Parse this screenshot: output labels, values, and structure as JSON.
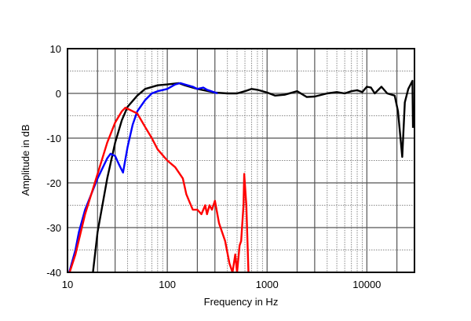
{
  "chart_data": {
    "type": "line",
    "title": "",
    "xlabel": "Frequency in Hz",
    "ylabel": "Amplitude in dB",
    "xscale": "log",
    "xlim": [
      10,
      30000
    ],
    "ylim": [
      -40,
      10
    ],
    "xticks": [
      10,
      100,
      1000,
      10000
    ],
    "xtick_labels": [
      "10",
      "100",
      "1000",
      "10000"
    ],
    "yticks": [
      10,
      0,
      -10,
      -20,
      -30,
      -40
    ],
    "ytick_labels": [
      "10",
      "0",
      "-10",
      "-20",
      "-30",
      "-40"
    ],
    "grid": true,
    "legend": "none",
    "series": [
      {
        "name": "black",
        "color": "#000000",
        "points": [
          [
            18,
            -40
          ],
          [
            20,
            -31
          ],
          [
            25,
            -19
          ],
          [
            30,
            -11
          ],
          [
            35,
            -6
          ],
          [
            40,
            -3
          ],
          [
            50,
            -0.5
          ],
          [
            60,
            1
          ],
          [
            80,
            1.8
          ],
          [
            100,
            2
          ],
          [
            130,
            2.3
          ],
          [
            150,
            1.8
          ],
          [
            200,
            1
          ],
          [
            300,
            0.2
          ],
          [
            400,
            0
          ],
          [
            500,
            0
          ],
          [
            600,
            0.5
          ],
          [
            700,
            1
          ],
          [
            800,
            0.8
          ],
          [
            1000,
            0.2
          ],
          [
            1200,
            -0.5
          ],
          [
            1500,
            -0.3
          ],
          [
            2000,
            0.5
          ],
          [
            2500,
            -0.8
          ],
          [
            3000,
            -0.7
          ],
          [
            4000,
            0
          ],
          [
            5000,
            0.3
          ],
          [
            6000,
            0
          ],
          [
            7000,
            0.5
          ],
          [
            8000,
            0.7
          ],
          [
            9000,
            0.3
          ],
          [
            10000,
            1.5
          ],
          [
            11000,
            1.3
          ],
          [
            12000,
            0
          ],
          [
            14000,
            1.5
          ],
          [
            16000,
            0
          ],
          [
            19000,
            -0.5
          ],
          [
            20500,
            -4
          ],
          [
            22600,
            -14.2
          ],
          [
            24000,
            -2
          ],
          [
            26000,
            1
          ],
          [
            28600,
            2.8
          ],
          [
            29000,
            -7.7
          ]
        ]
      },
      {
        "name": "blue",
        "color": "#0000ff",
        "points": [
          [
            10.4,
            -40
          ],
          [
            12,
            -35
          ],
          [
            13,
            -31
          ],
          [
            15,
            -26
          ],
          [
            20,
            -19
          ],
          [
            25,
            -14.5
          ],
          [
            27,
            -13.5
          ],
          [
            30,
            -14
          ],
          [
            33,
            -16
          ],
          [
            36,
            -17.7
          ],
          [
            40,
            -12
          ],
          [
            45,
            -7
          ],
          [
            50,
            -4
          ],
          [
            60,
            -1.5
          ],
          [
            70,
            0
          ],
          [
            80,
            0.5
          ],
          [
            100,
            1
          ],
          [
            120,
            2
          ],
          [
            135,
            2.3
          ],
          [
            150,
            2
          ],
          [
            180,
            1.5
          ],
          [
            200,
            1
          ],
          [
            230,
            1.3
          ],
          [
            250,
            0.8
          ],
          [
            320,
            0
          ]
        ]
      },
      {
        "name": "red",
        "color": "#ff0000",
        "points": [
          [
            10.5,
            -40
          ],
          [
            12,
            -36
          ],
          [
            15,
            -27
          ],
          [
            20,
            -18
          ],
          [
            25,
            -11
          ],
          [
            30,
            -6.5
          ],
          [
            35,
            -4
          ],
          [
            38,
            -3.2
          ],
          [
            50,
            -4.5
          ],
          [
            60,
            -7.5
          ],
          [
            70,
            -10
          ],
          [
            80,
            -12.5
          ],
          [
            100,
            -15
          ],
          [
            120,
            -16.5
          ],
          [
            143,
            -19
          ],
          [
            155,
            -22.5
          ],
          [
            165,
            -24
          ],
          [
            180,
            -26
          ],
          [
            200,
            -26
          ],
          [
            220,
            -27
          ],
          [
            240,
            -25
          ],
          [
            250,
            -27
          ],
          [
            265,
            -25
          ],
          [
            280,
            -26
          ],
          [
            300,
            -24
          ],
          [
            330,
            -29
          ],
          [
            380,
            -33
          ],
          [
            420,
            -38
          ],
          [
            450,
            -40
          ],
          [
            480,
            -36
          ],
          [
            500,
            -40
          ],
          [
            530,
            -34
          ],
          [
            550,
            -33
          ],
          [
            580,
            -25
          ],
          [
            590,
            -18
          ],
          [
            620,
            -25
          ],
          [
            650,
            -40
          ]
        ]
      }
    ]
  }
}
